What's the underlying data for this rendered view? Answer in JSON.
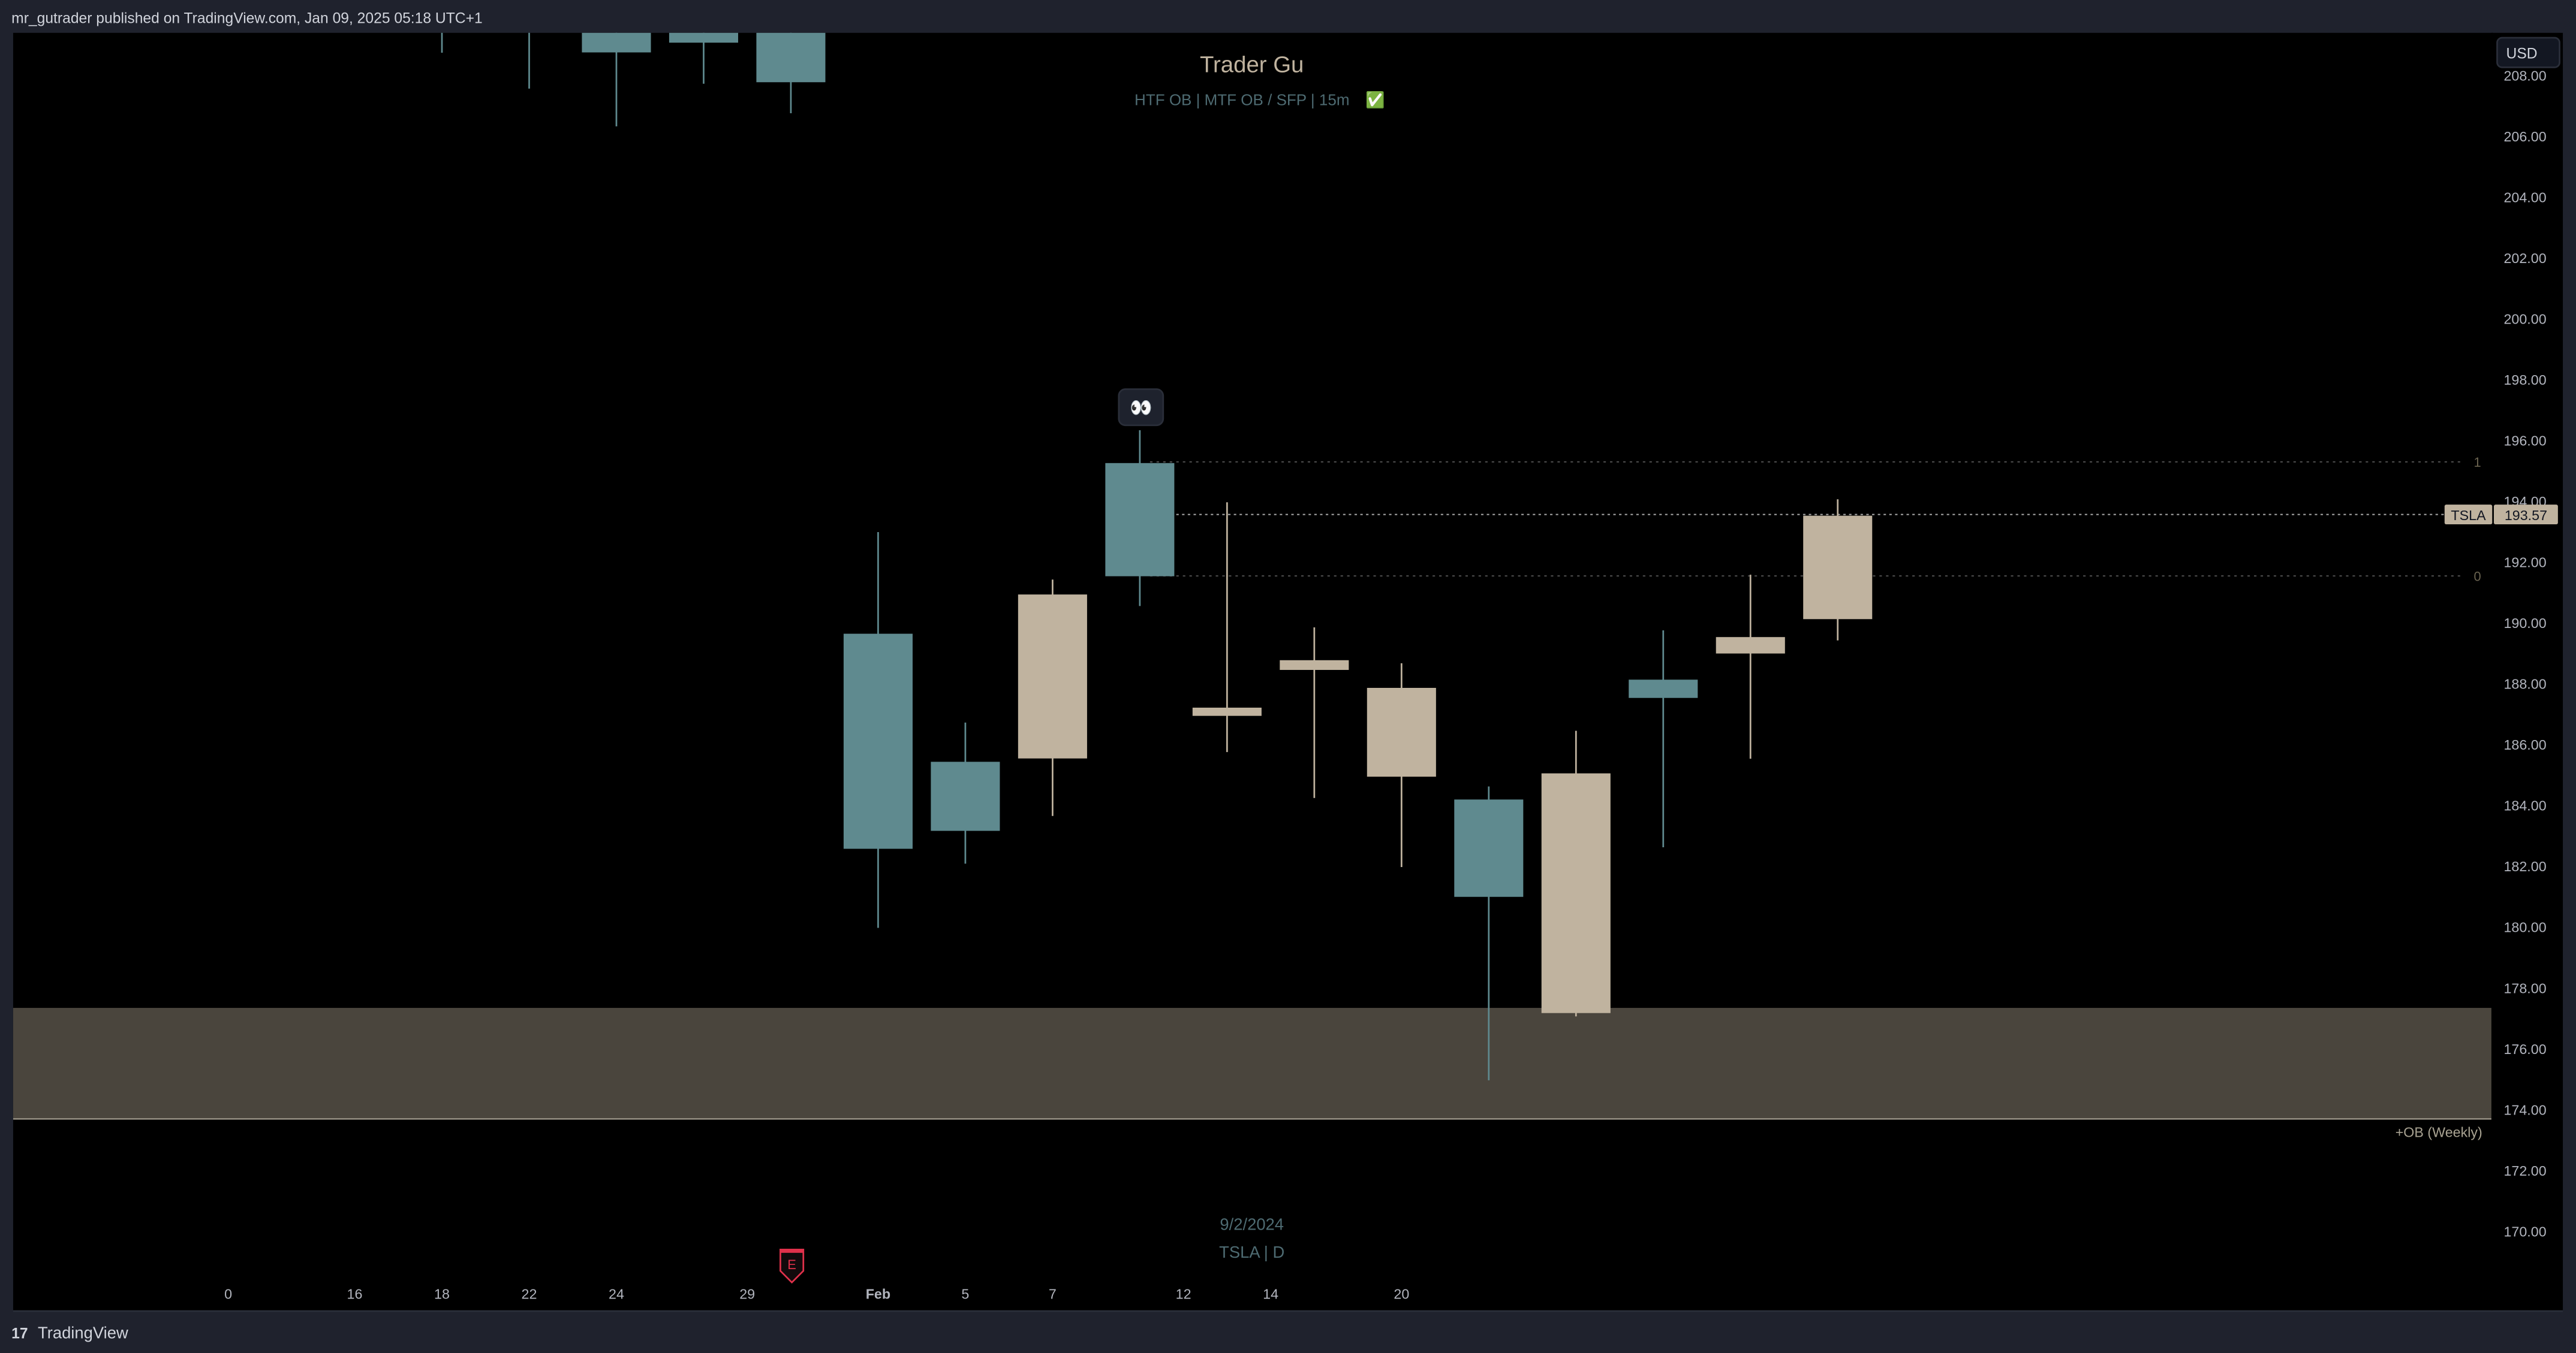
{
  "header": {
    "published": "mr_gutrader published on TradingView.com, Jan 09, 2025 05:18 UTC+1"
  },
  "footer": {
    "brand": "TradingView",
    "logo": "tv-logo-icon"
  },
  "currency_button": "USD",
  "watermark": {
    "title": "Trader Gu",
    "subtitle": "HTF OB  |  MTF OB / SFP  |  15m",
    "check": "✅",
    "date": "9/2/2024",
    "symbol_line": "TSLA | D"
  },
  "eyes_marker": "👀",
  "earnings_marker": "E",
  "colors": {
    "up": "#c0b39f",
    "down": "#5f8a8f",
    "zone": "#4a453d",
    "background": "#000000",
    "frame": "#1f222d"
  },
  "chart_data": {
    "type": "candlestick",
    "symbol": "TSLA",
    "interval": "D",
    "ylim": [
      169.2,
      209.4
    ],
    "y_ticks": [
      "208.00",
      "206.00",
      "204.00",
      "202.00",
      "200.00",
      "198.00",
      "196.00",
      "194.00",
      "192.00",
      "190.00",
      "188.00",
      "186.00",
      "184.00",
      "182.00",
      "180.00",
      "178.00",
      "176.00",
      "174.00",
      "172.00",
      "170.00"
    ],
    "x_ticks": [
      {
        "label": "0",
        "slot": -4.9
      },
      {
        "label": "16",
        "slot": -2
      },
      {
        "label": "18",
        "slot": 0
      },
      {
        "label": "22",
        "slot": 2
      },
      {
        "label": "24",
        "slot": 4
      },
      {
        "label": "29",
        "slot": 7
      },
      {
        "label": "Feb",
        "slot": 10
      },
      {
        "label": "5",
        "slot": 12
      },
      {
        "label": "7",
        "slot": 14
      },
      {
        "label": "12",
        "slot": 17
      },
      {
        "label": "14",
        "slot": 19
      },
      {
        "label": "20",
        "slot": 22
      }
    ],
    "candles": [
      {
        "open": 212.0,
        "high": 213.0,
        "low": 208.75,
        "close": 211.0
      },
      {
        "open": 212.5,
        "high": 213.5,
        "low": 207.57,
        "close": 211.5
      },
      {
        "open": 210.5,
        "high": 211.0,
        "low": 206.33,
        "close": 208.76
      },
      {
        "open": 210.0,
        "high": 211.0,
        "low": 207.73,
        "close": 209.08
      },
      {
        "open": 210.5,
        "high": 211.0,
        "low": 206.76,
        "close": 207.78
      },
      {
        "open": 189.65,
        "high": 192.99,
        "low": 179.98,
        "close": 182.58
      },
      {
        "open": 185.44,
        "high": 186.73,
        "low": 182.09,
        "close": 183.17
      },
      {
        "open": 185.55,
        "high": 191.43,
        "low": 183.66,
        "close": 190.94
      },
      {
        "open": 195.26,
        "high": 196.34,
        "low": 190.56,
        "close": 191.54
      },
      {
        "open": 186.95,
        "high": 193.97,
        "low": 185.76,
        "close": 187.22
      },
      {
        "open": 188.46,
        "high": 189.86,
        "low": 184.25,
        "close": 188.78
      },
      {
        "open": 184.95,
        "high": 188.68,
        "low": 181.98,
        "close": 187.87
      },
      {
        "open": 184.2,
        "high": 184.63,
        "low": 174.97,
        "close": 181.0
      },
      {
        "open": 177.18,
        "high": 186.46,
        "low": 177.07,
        "close": 185.06
      },
      {
        "open": 188.14,
        "high": 189.76,
        "low": 182.63,
        "close": 187.54
      },
      {
        "open": 189.0,
        "high": 191.59,
        "low": 185.54,
        "close": 189.54
      },
      {
        "open": 190.13,
        "high": 194.07,
        "low": 189.43,
        "close": 193.53
      }
    ],
    "last_price": {
      "symbol": "TSLA",
      "value": "193.57",
      "price": 193.57
    },
    "levels": [
      {
        "label": "1",
        "price": 195.3
      },
      {
        "label": "0",
        "price": 191.55
      }
    ],
    "zone": {
      "label": "+OB (Weekly)",
      "top": 177.35,
      "bottom": 173.7
    }
  }
}
